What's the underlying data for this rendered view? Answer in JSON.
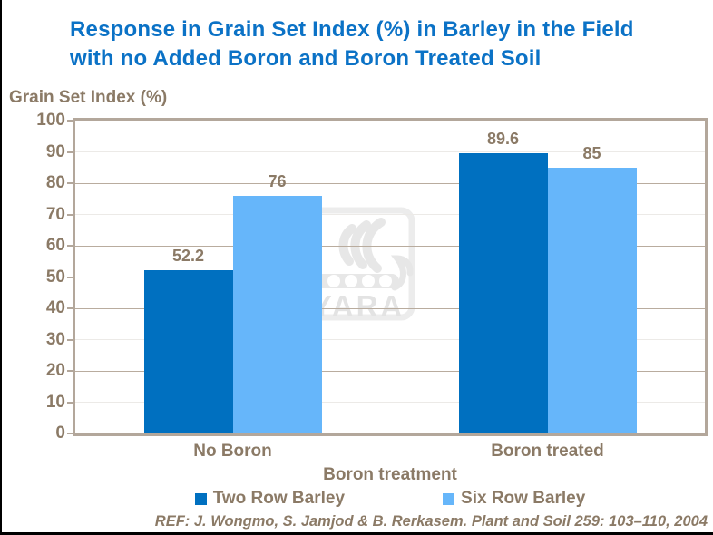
{
  "colors": {
    "title_blue": "#0b72c6",
    "text_brown": "#8b7a66",
    "axis_tan": "#b3a79b",
    "grid_major": "#b9ac9e",
    "grid_minor": "#eceae7",
    "bar_dark_blue": "#0070c0",
    "bar_light_blue": "#66b6fa",
    "watermark_gray": "#e7e7e7",
    "watermark_frame": "#ececec",
    "watermark_text_gray": "#e3e3e3",
    "border_black": "#000000"
  },
  "title": {
    "lines": [
      "Response in Grain Set Index (%) in Barley in the Field",
      "with no Added Boron and Boron Treated Soil"
    ]
  },
  "chart_data": {
    "type": "bar",
    "title": "Response in Grain Set Index (%) in Barley in the Field with no Added Boron and Boron Treated Soil",
    "categories": [
      "No Boron",
      "Boron treated"
    ],
    "series": [
      {
        "name": "Two Row Barley",
        "color": "#0070c0",
        "values": [
          52.2,
          89.6
        ]
      },
      {
        "name": "Six Row Barley",
        "color": "#66b6fa",
        "values": [
          76,
          85
        ]
      }
    ],
    "value_labels": [
      [
        "52.2",
        "89.6"
      ],
      [
        "76",
        "85"
      ]
    ],
    "xlabel": "Boron treatment",
    "ylabel": "Grain Set Index (%)",
    "ylim": [
      0,
      100
    ],
    "yticks": [
      0,
      10,
      20,
      30,
      40,
      50,
      60,
      70,
      80,
      90,
      100
    ],
    "grid": "horizontal-every-10-major-every-20",
    "legend_position": "bottom"
  },
  "watermark": {
    "name": "yara-logo",
    "text": "YARA"
  },
  "footer": {
    "ref_text": "REF: J. Wongmo, S. Jamjod & B. Rerkasem. Plant and Soil 259: 103–110, 2004"
  }
}
